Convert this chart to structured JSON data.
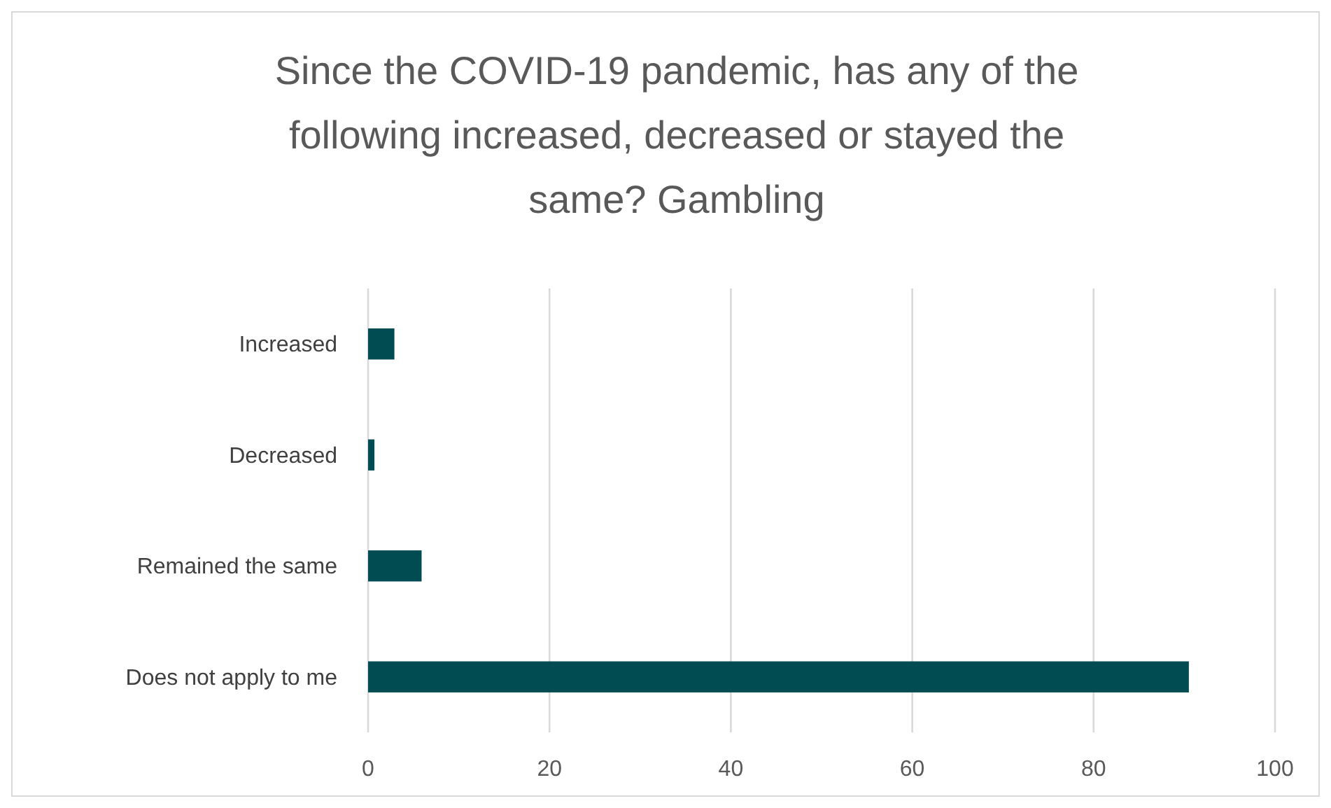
{
  "chart_data": {
    "type": "bar",
    "orientation": "horizontal",
    "title": "Since the COVID-19 pandemic, has any of the following increased, decreased or stayed the same? Gambling",
    "categories": [
      "Increased",
      "Decreased",
      "Remained the same",
      "Does not apply to me"
    ],
    "values": [
      2.9,
      0.7,
      5.9,
      90.5
    ],
    "color": "#004c53",
    "xlim": [
      0,
      100
    ],
    "xticks": [
      0,
      20,
      40,
      60,
      80,
      100
    ],
    "grid": "x"
  }
}
